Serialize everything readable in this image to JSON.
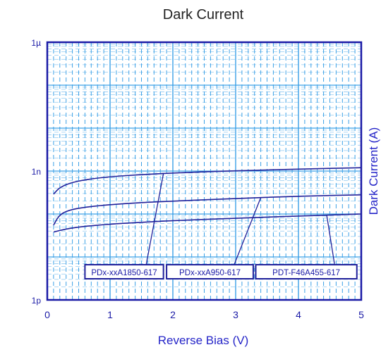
{
  "chart_data": {
    "type": "line",
    "title": "Dark Current",
    "xlabel": "Reverse Bias (V)",
    "ylabel": "Dark Current (A)",
    "x_ticks": [
      "0",
      "1",
      "2",
      "3",
      "4",
      "5"
    ],
    "y_ticks": [
      "1p",
      "1n",
      "1µ"
    ],
    "xlim": [
      0,
      5
    ],
    "ylim": [
      1e-12,
      1e-06
    ],
    "yscale": "log",
    "grid": true,
    "series": [
      {
        "name": "PDx-xxA1850-617",
        "x": [
          0.1,
          0.2,
          0.4,
          0.7,
          1,
          1.5,
          2,
          3,
          4,
          5
        ],
        "y": [
          2.9e-10,
          4.2e-10,
          5.5e-10,
          6.6e-10,
          7.4e-10,
          8.3e-10,
          9e-10,
          1.02e-09,
          1.11e-09,
          1.2e-09
        ]
      },
      {
        "name": "PDx-xxA950-617",
        "x": [
          0.1,
          0.2,
          0.4,
          0.7,
          1,
          1.5,
          2,
          3,
          4,
          5
        ],
        "y": [
          5.5e-11,
          1e-10,
          1.3e-10,
          1.5e-10,
          1.65e-10,
          1.85e-10,
          2e-10,
          2.3e-10,
          2.6e-10,
          2.8e-10
        ]
      },
      {
        "name": "PDT-F46A455-617",
        "x": [
          0.1,
          0.3,
          0.6,
          1,
          1.5,
          2,
          3,
          4,
          5
        ],
        "y": [
          3.8e-11,
          4.5e-11,
          5.2e-11,
          5.8e-11,
          6.4e-11,
          7e-11,
          8e-11,
          9e-11,
          1e-10
        ]
      }
    ],
    "annotations": [
      {
        "text": "PDx-xxA1850-617",
        "series": 0,
        "at_x": 1.85,
        "box_x": [
          0.6,
          1.85
        ]
      },
      {
        "text": "PDx-xxA950-617",
        "series": 1,
        "at_x": 3.4,
        "box_x": [
          1.9,
          3.28
        ]
      },
      {
        "text": "PDT-F46A455-617",
        "series": 2,
        "at_x": 4.45,
        "box_x": [
          3.32,
          4.93
        ]
      }
    ]
  },
  "colors": {
    "axis": "#1a1aa6",
    "grid": "#3aa0e6",
    "curve": "#20209a",
    "text": "#1a1aa6"
  }
}
